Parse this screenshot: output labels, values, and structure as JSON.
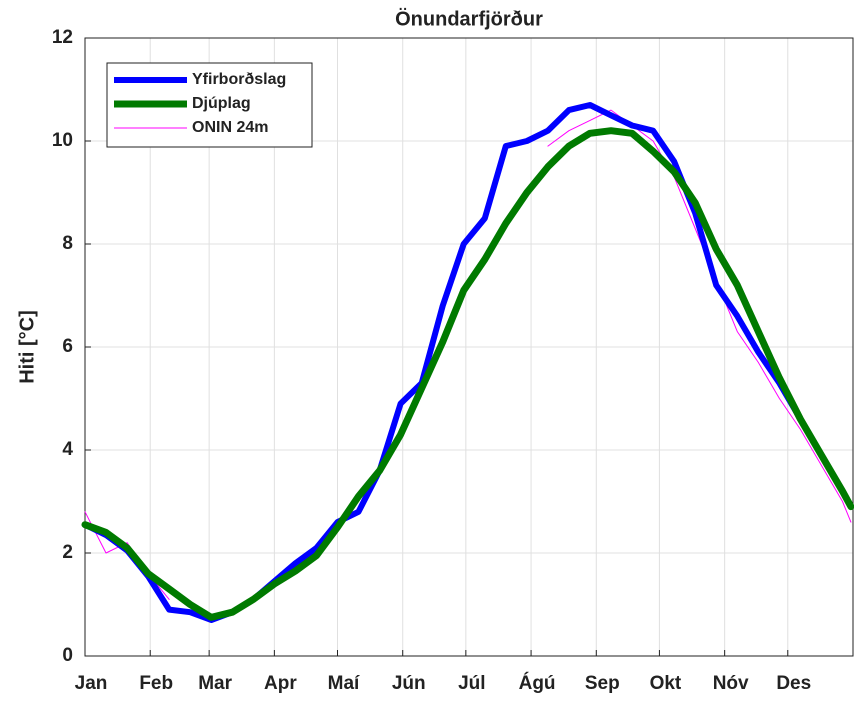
{
  "chart_data": {
    "type": "line",
    "title": "Önundarfjörður",
    "y_label": "Hiti [°C]",
    "x": [
      1,
      11,
      21,
      31,
      41,
      51,
      61,
      71,
      81,
      91,
      101,
      111,
      121,
      131,
      141,
      151,
      161,
      171,
      181,
      191,
      201,
      211,
      221,
      231,
      241,
      251,
      261,
      271,
      281,
      291,
      301,
      311,
      321,
      331,
      341,
      351,
      361,
      365
    ],
    "xlim": [
      1,
      366
    ],
    "xticks": [
      {
        "value": 1,
        "label": "Jan"
      },
      {
        "value": 32,
        "label": "Feb"
      },
      {
        "value": 60,
        "label": "Mar"
      },
      {
        "value": 91,
        "label": "Apr"
      },
      {
        "value": 121,
        "label": "Maí"
      },
      {
        "value": 152,
        "label": "Jún"
      },
      {
        "value": 182,
        "label": "Júl"
      },
      {
        "value": 213,
        "label": "Ágú"
      },
      {
        "value": 244,
        "label": "Sep"
      },
      {
        "value": 274,
        "label": "Okt"
      },
      {
        "value": 305,
        "label": "Nóv"
      },
      {
        "value": 335,
        "label": "Des"
      }
    ],
    "ylim": [
      0,
      12
    ],
    "yticks": [
      0,
      2,
      4,
      6,
      8,
      10,
      12
    ],
    "grid": true,
    "legend": "upper left",
    "series": [
      {
        "name": "Yfirborðslag",
        "color": "#0000ff",
        "values": [
          2.55,
          2.35,
          2.05,
          1.55,
          0.9,
          0.85,
          0.7,
          0.85,
          1.1,
          1.45,
          1.8,
          2.1,
          2.6,
          2.8,
          3.6,
          4.9,
          5.3,
          6.8,
          8.0,
          8.5,
          9.9,
          10.0,
          10.2,
          10.6,
          10.7,
          10.5,
          10.3,
          10.2,
          9.6,
          8.6,
          7.2,
          6.6,
          5.9,
          5.3,
          4.6,
          3.9,
          3.2,
          2.9
        ]
      },
      {
        "name": "Djúplag",
        "color": "#007a00",
        "values": [
          2.55,
          2.4,
          2.1,
          1.6,
          1.3,
          1.0,
          0.75,
          0.85,
          1.1,
          1.4,
          1.65,
          1.95,
          2.5,
          3.1,
          3.6,
          4.3,
          5.2,
          6.1,
          7.1,
          7.7,
          8.4,
          9.0,
          9.5,
          9.9,
          10.15,
          10.2,
          10.15,
          9.8,
          9.4,
          8.8,
          7.9,
          7.2,
          6.3,
          5.4,
          4.6,
          3.9,
          3.2,
          2.9
        ]
      },
      {
        "name": "ONIN 24m",
        "color": "#ff00ff",
        "values": [
          2.8,
          2.0,
          2.2,
          1.6,
          1.1,
          null,
          null,
          null,
          null,
          null,
          null,
          null,
          null,
          null,
          null,
          null,
          null,
          null,
          null,
          null,
          null,
          null,
          9.9,
          10.2,
          10.4,
          10.6,
          10.3,
          10.0,
          9.3,
          8.3,
          7.3,
          6.3,
          5.7,
          5.0,
          4.4,
          3.7,
          3.0,
          2.6
        ]
      }
    ]
  }
}
